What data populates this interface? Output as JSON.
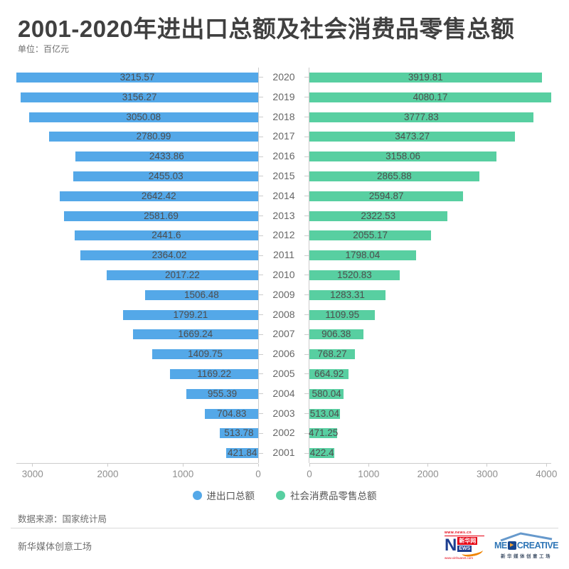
{
  "chart_data": {
    "type": "bar",
    "layout": "bilateral-tornado-horizontal",
    "title": "2001-2020年进出口总额及社会消费品零售总额",
    "unit_label": "单位：百亿元",
    "categories": [
      "2020",
      "2019",
      "2018",
      "2017",
      "2016",
      "2015",
      "2014",
      "2013",
      "2012",
      "2011",
      "2010",
      "2009",
      "2008",
      "2007",
      "2006",
      "2005",
      "2004",
      "2003",
      "2002",
      "2001"
    ],
    "series": [
      {
        "name": "进出口总额",
        "side": "left",
        "color": "#54A8E8",
        "axis_max": 3215.57,
        "axis_ticks": [
          3000,
          2000,
          1000,
          0
        ],
        "values": [
          3215.57,
          3156.27,
          3050.08,
          2780.99,
          2433.86,
          2455.03,
          2642.42,
          2581.69,
          2441.6,
          2364.02,
          2017.22,
          1506.48,
          1799.21,
          1669.24,
          1409.75,
          1169.22,
          955.39,
          704.83,
          513.78,
          421.84
        ]
      },
      {
        "name": "社会消费品零售总额",
        "side": "right",
        "color": "#58CFA1",
        "axis_max": 4080.17,
        "axis_ticks": [
          0,
          1000,
          2000,
          3000,
          4000
        ],
        "values": [
          3919.81,
          4080.17,
          3777.83,
          3473.27,
          3158.06,
          2865.88,
          2594.87,
          2322.53,
          2055.17,
          1798.04,
          1520.83,
          1283.31,
          1109.95,
          906.38,
          768.27,
          664.92,
          580.04,
          513.04,
          471.25,
          422.4
        ]
      }
    ],
    "legend_position": "bottom-center",
    "grid": false
  },
  "source": {
    "text": "数据来源：国家统计局"
  },
  "brand": {
    "text": "新华媒体创意工场"
  },
  "logos": {
    "xinhua": {
      "top_url": "www.news.cn",
      "n": "N",
      "name": "新华网",
      "ews": "EWS",
      "bottom_url": "www.xinhuanet.com"
    },
    "medcreative": {
      "me": "ME",
      "play": "▶",
      "creative": "CREATIVE",
      "caption": "新华媒体创意工场"
    }
  }
}
